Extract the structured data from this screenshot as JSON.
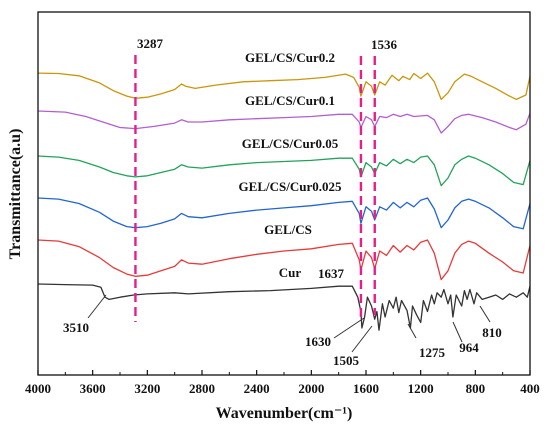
{
  "chart_data": {
    "type": "line",
    "xlabel": "Wavenumber(cm⁻¹)",
    "ylabel": "Transmittance(a.u)",
    "xlim": [
      4000,
      400
    ],
    "x_reversed": true,
    "y_ticks_shown": false,
    "grid": false,
    "x_ticks": [
      4000,
      3600,
      3200,
      2800,
      2400,
      2000,
      1600,
      1200,
      800,
      400
    ],
    "x_tick_labels": [
      "4000",
      "3600",
      "3200",
      "2800",
      "2400",
      "2000",
      "1600",
      "1200",
      "800",
      "400"
    ],
    "series": [
      {
        "name": "GEL/CS/Cur0.2",
        "color": "#c9960c",
        "points": [
          [
            4000,
            0.1
          ],
          [
            3850,
            0.5
          ],
          [
            3700,
            2.5
          ],
          [
            3550,
            9
          ],
          [
            3450,
            16
          ],
          [
            3350,
            21
          ],
          [
            3287,
            23
          ],
          [
            3200,
            22
          ],
          [
            3100,
            19
          ],
          [
            3000,
            15
          ],
          [
            2950,
            10
          ],
          [
            2920,
            12
          ],
          [
            2850,
            14
          ],
          [
            2700,
            11
          ],
          [
            2500,
            8
          ],
          [
            2300,
            7
          ],
          [
            2100,
            6
          ],
          [
            1900,
            4
          ],
          [
            1750,
            1
          ],
          [
            1690,
            4
          ],
          [
            1650,
            13
          ],
          [
            1637,
            21
          ],
          [
            1600,
            8
          ],
          [
            1560,
            12
          ],
          [
            1536,
            20
          ],
          [
            1500,
            8
          ],
          [
            1460,
            11
          ],
          [
            1410,
            2
          ],
          [
            1360,
            7
          ],
          [
            1330,
            3
          ],
          [
            1280,
            6
          ],
          [
            1250,
            0.5
          ],
          [
            1200,
            5
          ],
          [
            1150,
            0.1
          ],
          [
            1100,
            8
          ],
          [
            1050,
            24
          ],
          [
            1000,
            18
          ],
          [
            950,
            8
          ],
          [
            880,
            1
          ],
          [
            830,
            3
          ],
          [
            750,
            8
          ],
          [
            650,
            14
          ],
          [
            550,
            21
          ],
          [
            500,
            24
          ],
          [
            430,
            20
          ],
          [
            400,
            3
          ]
        ]
      },
      {
        "name": "GEL/CS/Cur0.1",
        "color": "#b35fd1",
        "points": [
          [
            4000,
            0
          ],
          [
            3800,
            1
          ],
          [
            3650,
            5
          ],
          [
            3500,
            11
          ],
          [
            3400,
            15
          ],
          [
            3287,
            16
          ],
          [
            3150,
            14
          ],
          [
            3000,
            11
          ],
          [
            2950,
            8
          ],
          [
            2900,
            10
          ],
          [
            2800,
            10
          ],
          [
            2600,
            8
          ],
          [
            2400,
            7
          ],
          [
            2200,
            6
          ],
          [
            2000,
            5
          ],
          [
            1800,
            3
          ],
          [
            1700,
            3
          ],
          [
            1650,
            10
          ],
          [
            1637,
            15
          ],
          [
            1600,
            5
          ],
          [
            1560,
            8
          ],
          [
            1536,
            14
          ],
          [
            1500,
            5
          ],
          [
            1450,
            6
          ],
          [
            1400,
            3
          ],
          [
            1350,
            5
          ],
          [
            1300,
            3
          ],
          [
            1250,
            5
          ],
          [
            1150,
            4
          ],
          [
            1100,
            8
          ],
          [
            1050,
            20
          ],
          [
            1000,
            14
          ],
          [
            950,
            7
          ],
          [
            900,
            4
          ],
          [
            850,
            3
          ],
          [
            750,
            6
          ],
          [
            650,
            10
          ],
          [
            550,
            15
          ],
          [
            500,
            17
          ],
          [
            430,
            12
          ],
          [
            400,
            2
          ]
        ]
      },
      {
        "name": "GEL/CS/Cur0.05",
        "color": "#22a35a",
        "points": [
          [
            4000,
            0
          ],
          [
            3850,
            1
          ],
          [
            3700,
            4
          ],
          [
            3550,
            10
          ],
          [
            3450,
            15
          ],
          [
            3350,
            18
          ],
          [
            3287,
            19
          ],
          [
            3200,
            18
          ],
          [
            3100,
            15
          ],
          [
            3000,
            12
          ],
          [
            2950,
            8
          ],
          [
            2900,
            10
          ],
          [
            2800,
            11
          ],
          [
            2600,
            8
          ],
          [
            2400,
            6
          ],
          [
            2200,
            5
          ],
          [
            2000,
            4
          ],
          [
            1800,
            2
          ],
          [
            1700,
            2
          ],
          [
            1650,
            12
          ],
          [
            1637,
            19
          ],
          [
            1600,
            6
          ],
          [
            1560,
            10
          ],
          [
            1536,
            16
          ],
          [
            1500,
            6
          ],
          [
            1450,
            9
          ],
          [
            1400,
            3
          ],
          [
            1350,
            7
          ],
          [
            1300,
            3
          ],
          [
            1250,
            6
          ],
          [
            1200,
            1
          ],
          [
            1150,
            0
          ],
          [
            1100,
            8
          ],
          [
            1050,
            27
          ],
          [
            1000,
            20
          ],
          [
            950,
            8
          ],
          [
            900,
            3
          ],
          [
            850,
            0
          ],
          [
            800,
            2
          ],
          [
            700,
            8
          ],
          [
            600,
            16
          ],
          [
            520,
            24
          ],
          [
            450,
            26
          ],
          [
            400,
            4
          ]
        ]
      },
      {
        "name": "GEL/CS/Cur0.025",
        "color": "#2166d0",
        "points": [
          [
            4000,
            0
          ],
          [
            3850,
            1
          ],
          [
            3700,
            5
          ],
          [
            3550,
            13
          ],
          [
            3450,
            21
          ],
          [
            3350,
            26
          ],
          [
            3287,
            27
          ],
          [
            3200,
            26
          ],
          [
            3100,
            23
          ],
          [
            3000,
            19
          ],
          [
            2950,
            14
          ],
          [
            2900,
            17
          ],
          [
            2800,
            18
          ],
          [
            2600,
            14
          ],
          [
            2400,
            11
          ],
          [
            2200,
            9
          ],
          [
            2000,
            7
          ],
          [
            1800,
            4
          ],
          [
            1700,
            3
          ],
          [
            1650,
            14
          ],
          [
            1637,
            23
          ],
          [
            1600,
            8
          ],
          [
            1560,
            12
          ],
          [
            1536,
            20
          ],
          [
            1500,
            8
          ],
          [
            1450,
            11
          ],
          [
            1400,
            4
          ],
          [
            1350,
            9
          ],
          [
            1300,
            4
          ],
          [
            1250,
            8
          ],
          [
            1200,
            2
          ],
          [
            1150,
            0
          ],
          [
            1100,
            10
          ],
          [
            1050,
            27
          ],
          [
            1000,
            20
          ],
          [
            950,
            9
          ],
          [
            900,
            3
          ],
          [
            850,
            1
          ],
          [
            800,
            3
          ],
          [
            700,
            9
          ],
          [
            600,
            18
          ],
          [
            520,
            26
          ],
          [
            450,
            28
          ],
          [
            400,
            5
          ]
        ]
      },
      {
        "name": "GEL/CS",
        "color": "#e83a3a",
        "points": [
          [
            4000,
            0
          ],
          [
            3850,
            1
          ],
          [
            3700,
            6
          ],
          [
            3550,
            16
          ],
          [
            3450,
            25
          ],
          [
            3350,
            31
          ],
          [
            3287,
            33
          ],
          [
            3200,
            32
          ],
          [
            3100,
            28
          ],
          [
            3000,
            24
          ],
          [
            2950,
            18
          ],
          [
            2900,
            21
          ],
          [
            2800,
            22
          ],
          [
            2600,
            17
          ],
          [
            2400,
            13
          ],
          [
            2200,
            10
          ],
          [
            2000,
            8
          ],
          [
            1800,
            4
          ],
          [
            1700,
            3
          ],
          [
            1650,
            18
          ],
          [
            1637,
            27
          ],
          [
            1600,
            10
          ],
          [
            1560,
            16
          ],
          [
            1536,
            26
          ],
          [
            1500,
            10
          ],
          [
            1450,
            14
          ],
          [
            1400,
            5
          ],
          [
            1350,
            11
          ],
          [
            1300,
            5
          ],
          [
            1250,
            9
          ],
          [
            1200,
            2
          ],
          [
            1150,
            0
          ],
          [
            1100,
            12
          ],
          [
            1050,
            36
          ],
          [
            1000,
            28
          ],
          [
            950,
            12
          ],
          [
            900,
            4
          ],
          [
            850,
            1
          ],
          [
            800,
            3
          ],
          [
            700,
            12
          ],
          [
            600,
            20
          ],
          [
            520,
            28
          ],
          [
            450,
            30
          ],
          [
            400,
            5
          ]
        ]
      },
      {
        "name": "Cur",
        "color": "#333333",
        "points": [
          [
            4000,
            0
          ],
          [
            3800,
            0.5
          ],
          [
            3600,
            1
          ],
          [
            3540,
            3
          ],
          [
            3510,
            12
          ],
          [
            3480,
            14
          ],
          [
            3400,
            12
          ],
          [
            3300,
            10
          ],
          [
            3200,
            9
          ],
          [
            3000,
            8
          ],
          [
            2900,
            9
          ],
          [
            2600,
            7
          ],
          [
            2300,
            6
          ],
          [
            2000,
            4
          ],
          [
            1800,
            2
          ],
          [
            1700,
            2
          ],
          [
            1660,
            12
          ],
          [
            1637,
            25
          ],
          [
            1630,
            40
          ],
          [
            1610,
            30
          ],
          [
            1590,
            12
          ],
          [
            1560,
            20
          ],
          [
            1536,
            32
          ],
          [
            1520,
            25
          ],
          [
            1505,
            42
          ],
          [
            1480,
            18
          ],
          [
            1460,
            30
          ],
          [
            1430,
            15
          ],
          [
            1400,
            22
          ],
          [
            1380,
            12
          ],
          [
            1360,
            26
          ],
          [
            1340,
            15
          ],
          [
            1300,
            24
          ],
          [
            1275,
            40
          ],
          [
            1260,
            20
          ],
          [
            1230,
            28
          ],
          [
            1200,
            35
          ],
          [
            1180,
            15
          ],
          [
            1150,
            25
          ],
          [
            1120,
            10
          ],
          [
            1100,
            18
          ],
          [
            1080,
            8
          ],
          [
            1050,
            12
          ],
          [
            1030,
            5
          ],
          [
            1000,
            18
          ],
          [
            980,
            10
          ],
          [
            964,
            30
          ],
          [
            940,
            10
          ],
          [
            900,
            20
          ],
          [
            880,
            6
          ],
          [
            860,
            14
          ],
          [
            840,
            5
          ],
          [
            810,
            18
          ],
          [
            790,
            8
          ],
          [
            750,
            14
          ],
          [
            700,
            12
          ],
          [
            650,
            10
          ],
          [
            600,
            14
          ],
          [
            550,
            9
          ],
          [
            500,
            12
          ],
          [
            450,
            8
          ],
          [
            420,
            12
          ],
          [
            400,
            2
          ]
        ]
      }
    ],
    "series_labels": [
      "GEL/CS/Cur0.2",
      "GEL/CS/Cur0.1",
      "GEL/CS/Cur0.05",
      "GEL/CS/Cur0.025",
      "GEL/CS",
      "Cur"
    ],
    "reference_lines": [
      {
        "x": 3287,
        "label": "3287",
        "color": "#e61e8c"
      },
      {
        "x": 1637,
        "label": "1637",
        "color": "#e61e8c"
      },
      {
        "x": 1536,
        "label": "1536",
        "color": "#e61e8c"
      }
    ],
    "peak_annotations": [
      "3510",
      "1630",
      "1505",
      "1275",
      "964",
      "810"
    ]
  }
}
